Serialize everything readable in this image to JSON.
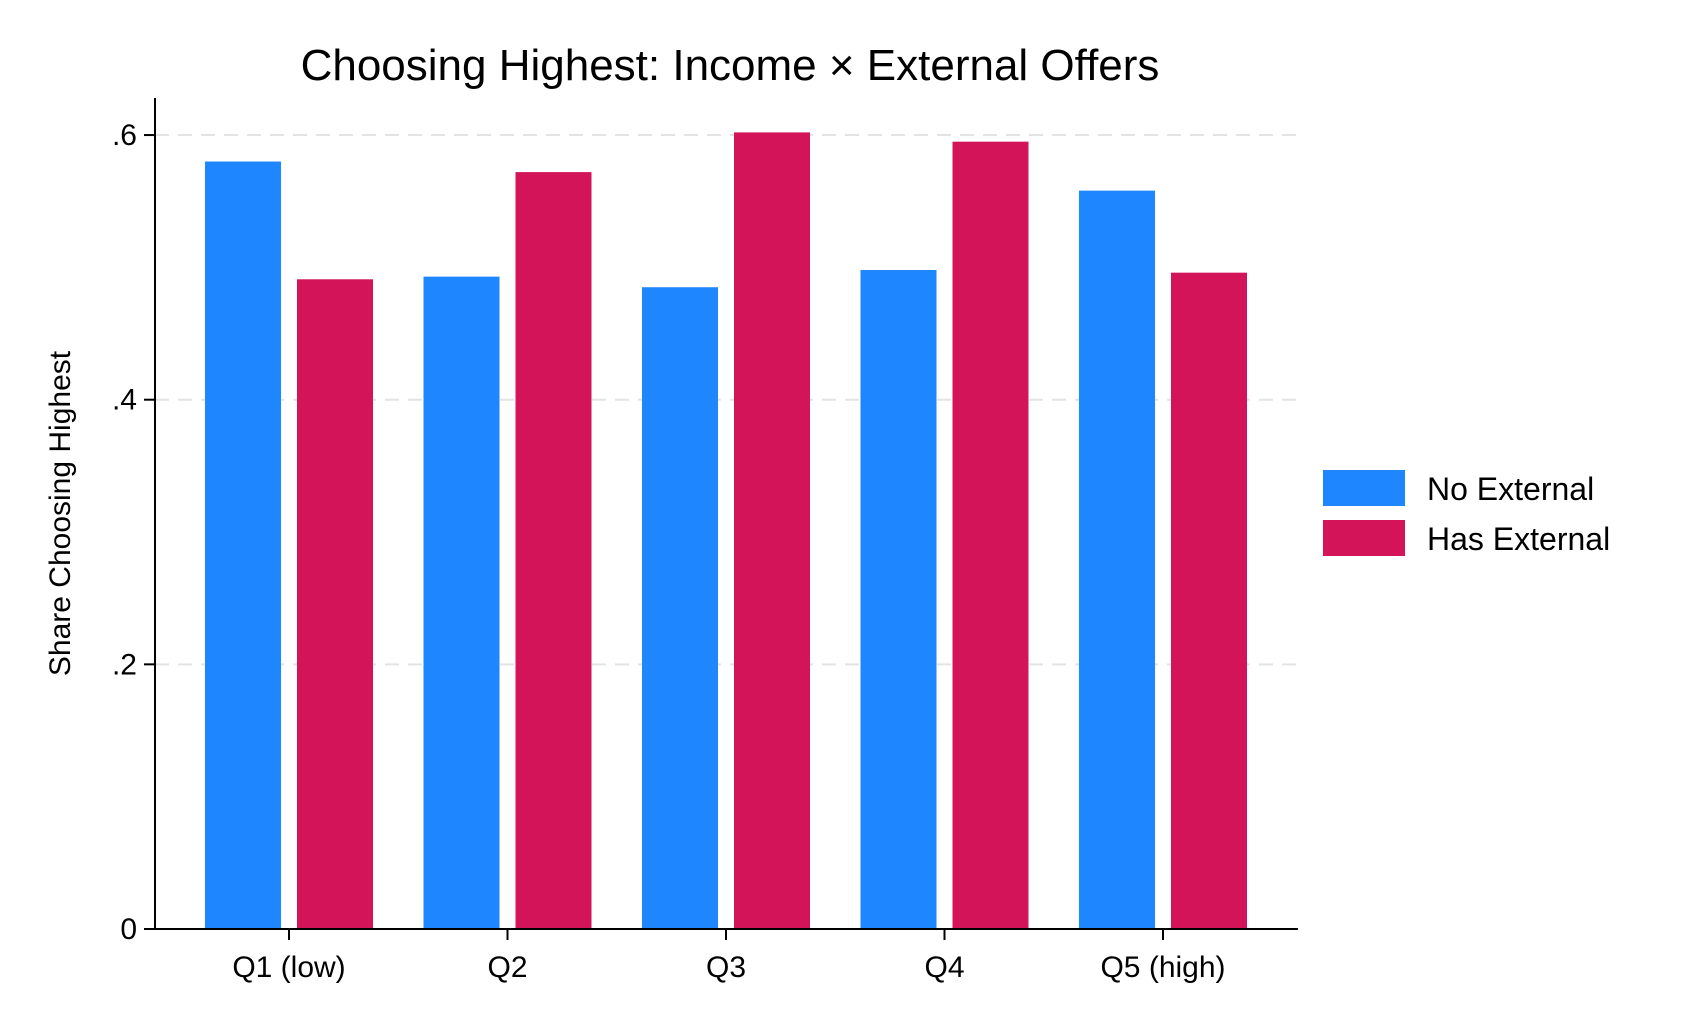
{
  "chart_data": {
    "type": "bar",
    "title": "Choosing Highest: Income × External Offers",
    "xlabel": "",
    "ylabel": "Share Choosing Highest",
    "categories": [
      "Q1 (low)",
      "Q2",
      "Q3",
      "Q4",
      "Q5 (high)"
    ],
    "series": [
      {
        "name": "No External",
        "color": "#1e86ff",
        "values": [
          0.58,
          0.493,
          0.485,
          0.498,
          0.558
        ]
      },
      {
        "name": "Has External",
        "color": "#d41458",
        "values": [
          0.491,
          0.572,
          0.602,
          0.595,
          0.496
        ]
      }
    ],
    "ylim": [
      0,
      0.628
    ],
    "yticks": [
      {
        "value": 0,
        "label": "0"
      },
      {
        "value": 0.2,
        "label": ".2"
      },
      {
        "value": 0.4,
        "label": ".4"
      },
      {
        "value": 0.6,
        "label": ".6"
      }
    ],
    "grid": true,
    "legend_position": "right"
  }
}
